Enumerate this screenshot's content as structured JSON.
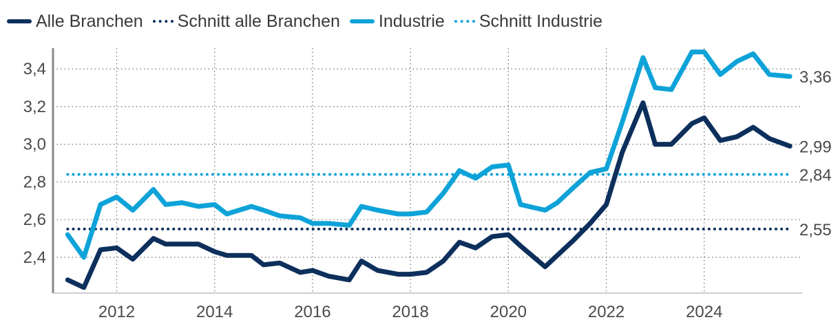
{
  "chart_data": {
    "type": "line",
    "title": "",
    "xlabel": "",
    "ylabel": "",
    "xlim": [
      2010.7,
      2026.0
    ],
    "ylim": [
      2.21,
      3.51
    ],
    "x_ticks": [
      2012,
      2014,
      2016,
      2018,
      2020,
      2022,
      2024
    ],
    "x_tick_labels": [
      "2012",
      "2014",
      "2016",
      "2018",
      "2020",
      "2022",
      "2024"
    ],
    "y_ticks": [
      2.4,
      2.6,
      2.8,
      3.0,
      3.2,
      3.4
    ],
    "y_tick_labels": [
      "2,4",
      "2,6",
      "2,8",
      "3,0",
      "3,2",
      "3,4"
    ],
    "grid": true,
    "legend_position": "top-left",
    "series": [
      {
        "key": "industrie",
        "name": "Industrie",
        "style": "solid",
        "color": "#0ea3d8",
        "end_label": "3,36",
        "x": [
          2011.0,
          2011.33,
          2011.67,
          2012.0,
          2012.33,
          2012.75,
          2013.0,
          2013.33,
          2013.67,
          2014.0,
          2014.25,
          2014.5,
          2014.75,
          2015.0,
          2015.33,
          2015.75,
          2016.0,
          2016.33,
          2016.75,
          2017.0,
          2017.33,
          2017.75,
          2018.0,
          2018.33,
          2018.67,
          2019.0,
          2019.33,
          2019.67,
          2020.0,
          2020.25,
          2020.75,
          2021.0,
          2021.33,
          2021.67,
          2022.0,
          2022.33,
          2022.75,
          2023.0,
          2023.33,
          2023.75,
          2024.0,
          2024.33,
          2024.67,
          2025.0,
          2025.33,
          2025.75
        ],
        "values": [
          2.52,
          2.4,
          2.68,
          2.72,
          2.65,
          2.76,
          2.68,
          2.69,
          2.67,
          2.68,
          2.63,
          2.65,
          2.67,
          2.65,
          2.62,
          2.61,
          2.58,
          2.58,
          2.57,
          2.67,
          2.65,
          2.63,
          2.63,
          2.64,
          2.74,
          2.86,
          2.82,
          2.88,
          2.89,
          2.68,
          2.65,
          2.69,
          2.77,
          2.85,
          2.87,
          3.12,
          3.46,
          3.3,
          3.29,
          3.49,
          3.49,
          3.37,
          3.44,
          3.48,
          3.37,
          3.36
        ]
      },
      {
        "key": "alle",
        "name": "Alle Branchen",
        "style": "solid",
        "color": "#0d2f5c",
        "end_label": "2,99",
        "x": [
          2011.0,
          2011.33,
          2011.67,
          2012.0,
          2012.33,
          2012.75,
          2013.0,
          2013.33,
          2013.67,
          2014.0,
          2014.25,
          2014.5,
          2014.75,
          2015.0,
          2015.33,
          2015.75,
          2016.0,
          2016.33,
          2016.75,
          2017.0,
          2017.33,
          2017.75,
          2018.0,
          2018.33,
          2018.67,
          2019.0,
          2019.33,
          2019.67,
          2020.0,
          2020.25,
          2020.75,
          2021.0,
          2021.33,
          2021.67,
          2022.0,
          2022.33,
          2022.75,
          2023.0,
          2023.33,
          2023.75,
          2024.0,
          2024.33,
          2024.67,
          2025.0,
          2025.33,
          2025.75
        ],
        "values": [
          2.28,
          2.24,
          2.44,
          2.45,
          2.39,
          2.5,
          2.47,
          2.47,
          2.47,
          2.43,
          2.41,
          2.41,
          2.41,
          2.36,
          2.37,
          2.32,
          2.33,
          2.3,
          2.28,
          2.38,
          2.33,
          2.31,
          2.31,
          2.32,
          2.38,
          2.48,
          2.45,
          2.51,
          2.52,
          2.46,
          2.35,
          2.41,
          2.49,
          2.58,
          2.68,
          2.96,
          3.22,
          3.0,
          3.0,
          3.11,
          3.14,
          3.02,
          3.04,
          3.09,
          3.03,
          2.99
        ]
      },
      {
        "key": "schnitt_industrie",
        "name": "Schnitt Industrie",
        "style": "dotted",
        "color": "#0ea3d8",
        "end_label": "2,84",
        "x": [
          2011.0,
          2025.75
        ],
        "values": [
          2.84,
          2.84
        ]
      },
      {
        "key": "schnitt_alle",
        "name": "Schnitt alle Branchen",
        "style": "dotted",
        "color": "#0d2f5c",
        "end_label": "2,55",
        "x": [
          2011.0,
          2025.75
        ],
        "values": [
          2.55,
          2.55
        ]
      }
    ]
  },
  "legend": {
    "items": [
      {
        "label": "Alle Branchen",
        "color": "#0d2f5c",
        "style": "solid"
      },
      {
        "label": "Schnitt alle Branchen",
        "color": "#0d2f5c",
        "style": "dotted"
      },
      {
        "label": "Industrie",
        "color": "#0ea3d8",
        "style": "solid"
      },
      {
        "label": "Schnitt Industrie",
        "color": "#0ea3d8",
        "style": "dotted"
      }
    ]
  }
}
